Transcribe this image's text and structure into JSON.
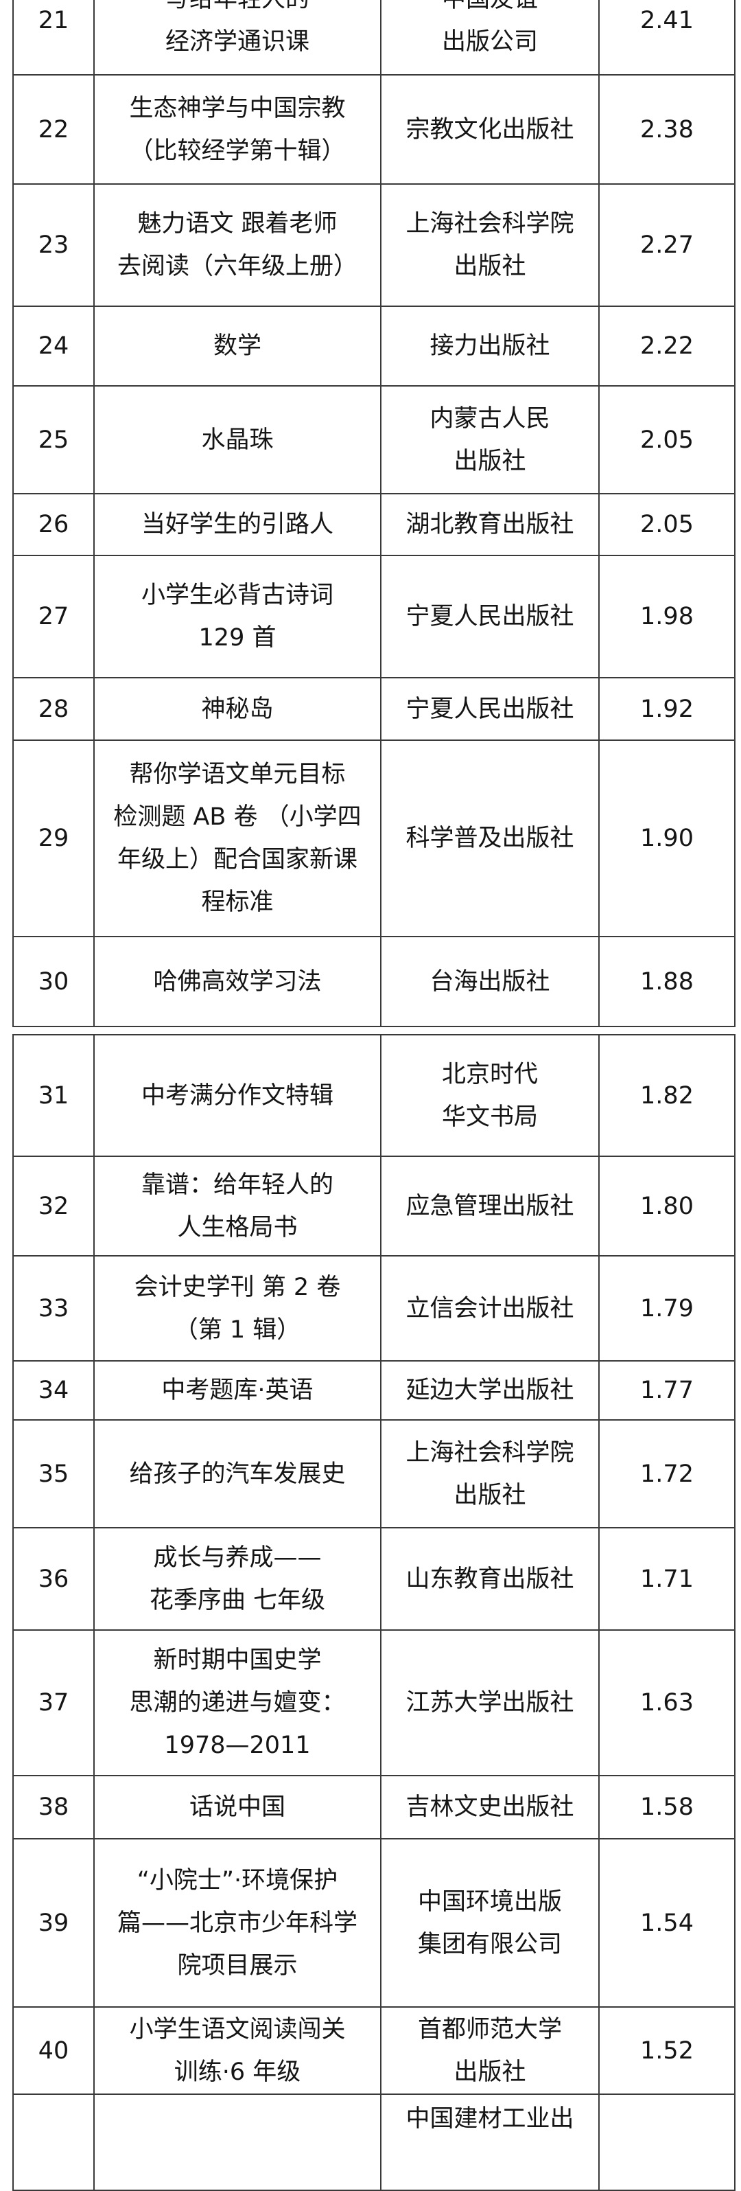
{
  "tables": [
    {
      "rows": [
        {
          "rank": "21",
          "title": [
            "写给年轻人的",
            "经济学通识课"
          ],
          "publisher": [
            "中国友谊",
            "出版公司"
          ],
          "value": "2.41"
        },
        {
          "rank": "22",
          "title": [
            "生态神学与中国宗教",
            "（比较经学第十辑）"
          ],
          "publisher": [
            "宗教文化出版社"
          ],
          "value": "2.38"
        },
        {
          "rank": "23",
          "title": [
            "魅力语文 跟着老师",
            "去阅读（六年级上册）"
          ],
          "publisher": [
            "上海社会科学院",
            "出版社"
          ],
          "value": "2.27"
        },
        {
          "rank": "24",
          "title": [
            "数学"
          ],
          "publisher": [
            "接力出版社"
          ],
          "value": "2.22"
        },
        {
          "rank": "25",
          "title": [
            "水晶珠"
          ],
          "publisher": [
            "内蒙古人民",
            "出版社"
          ],
          "value": "2.05"
        },
        {
          "rank": "26",
          "title": [
            "当好学生的引路人"
          ],
          "publisher": [
            "湖北教育出版社"
          ],
          "value": "2.05"
        },
        {
          "rank": "27",
          "title": [
            "小学生必背古诗词",
            "129 首"
          ],
          "publisher": [
            "宁夏人民出版社"
          ],
          "value": "1.98"
        },
        {
          "rank": "28",
          "title": [
            "神秘岛"
          ],
          "publisher": [
            "宁夏人民出版社"
          ],
          "value": "1.92"
        },
        {
          "rank": "29",
          "title": [
            "帮你学语文单元目标",
            "检测题 AB 卷 （小学四",
            "年级上）配合国家新课",
            "程标准"
          ],
          "publisher": [
            "科学普及出版社"
          ],
          "value": "1.90"
        },
        {
          "rank": "30",
          "title": [
            "哈佛高效学习法"
          ],
          "publisher": [
            "台海出版社"
          ],
          "value": "1.88"
        }
      ]
    },
    {
      "rows": [
        {
          "rank": "31",
          "title": [
            "中考满分作文特辑"
          ],
          "publisher": [
            "北京时代",
            "华文书局"
          ],
          "value": "1.82"
        },
        {
          "rank": "32",
          "title": [
            "靠谱：给年轻人的",
            "人生格局书"
          ],
          "publisher": [
            "应急管理出版社"
          ],
          "value": "1.80"
        },
        {
          "rank": "33",
          "title": [
            "会计史学刊 第 2 卷",
            "（第 1 辑）"
          ],
          "publisher": [
            "立信会计出版社"
          ],
          "value": "1.79"
        },
        {
          "rank": "34",
          "title": [
            "中考题库·英语"
          ],
          "publisher": [
            "延边大学出版社"
          ],
          "value": "1.77"
        },
        {
          "rank": "35",
          "title": [
            "给孩子的汽车发展史"
          ],
          "publisher": [
            "上海社会科学院",
            "出版社"
          ],
          "value": "1.72"
        },
        {
          "rank": "36",
          "title": [
            "成长与养成——",
            "花季序曲 七年级"
          ],
          "publisher": [
            "山东教育出版社"
          ],
          "value": "1.71"
        },
        {
          "rank": "37",
          "title": [
            "新时期中国史学",
            "思潮的递进与嬗变：",
            "1978—2011"
          ],
          "publisher": [
            "江苏大学出版社"
          ],
          "value": "1.63"
        },
        {
          "rank": "38",
          "title": [
            "话说中国"
          ],
          "publisher": [
            "吉林文史出版社"
          ],
          "value": "1.58"
        },
        {
          "rank": "39",
          "title": [
            "“小院士”·环境保护",
            "篇——北京市少年科学",
            "院项目展示"
          ],
          "publisher": [
            "中国环境出版",
            "集团有限公司"
          ],
          "value": "1.54"
        },
        {
          "rank": "40",
          "title": [
            "小学生语文阅读闯关",
            "训练·6 年级"
          ],
          "publisher": [
            "首都师范大学",
            "出版社"
          ],
          "value": "1.52"
        },
        {
          "rank": "",
          "title": [],
          "publisher": [
            "中国建材工业出"
          ],
          "value": ""
        }
      ]
    }
  ]
}
